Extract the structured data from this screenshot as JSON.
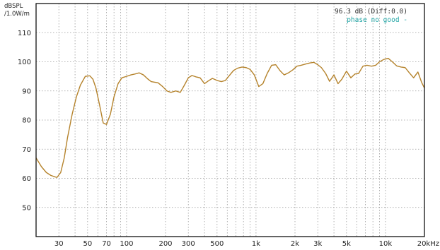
{
  "chart_data": {
    "type": "line",
    "ylabel": "dBSPL",
    "ylabel_sub": "/1.0W/m",
    "xunit_label": "Hz",
    "x_scale": "log",
    "xlim": [
      20,
      20000
    ],
    "ylim": [
      40,
      120
    ],
    "grid": true,
    "x_ticks": [
      {
        "value": 30,
        "label": "30"
      },
      {
        "value": 50,
        "label": "50"
      },
      {
        "value": 70,
        "label": "70"
      },
      {
        "value": 100,
        "label": "100"
      },
      {
        "value": 200,
        "label": "200"
      },
      {
        "value": 300,
        "label": "300"
      },
      {
        "value": 500,
        "label": "500"
      },
      {
        "value": 1000,
        "label": "1k"
      },
      {
        "value": 2000,
        "label": "2k"
      },
      {
        "value": 3000,
        "label": "3k"
      },
      {
        "value": 5000,
        "label": "5k"
      },
      {
        "value": 10000,
        "label": "10k"
      },
      {
        "value": 20000,
        "label": "20kHz"
      }
    ],
    "y_ticks": [
      {
        "value": 110,
        "label": "110"
      },
      {
        "value": 100,
        "label": "100"
      },
      {
        "value": 90,
        "label": "90"
      },
      {
        "value": 80,
        "label": "80"
      },
      {
        "value": 70,
        "label": "70"
      },
      {
        "value": 60,
        "label": "60"
      },
      {
        "value": 50,
        "label": "50"
      }
    ],
    "annotations": {
      "level": "96.3 dB (Diff:0.0)",
      "phase": "phase no good -"
    },
    "colors": {
      "curve": "#b5832c",
      "phase_text": "#21a5a5",
      "frame": "#111111"
    },
    "series": [
      {
        "x": [
          20,
          22,
          24,
          26,
          28,
          29,
          31,
          33,
          35,
          38,
          41,
          44,
          48,
          52,
          55,
          58,
          62,
          66,
          70,
          75,
          80,
          86,
          92,
          100,
          108,
          116,
          125,
          135,
          145,
          155,
          165,
          175,
          190,
          205,
          220,
          240,
          260,
          280,
          300,
          320,
          345,
          370,
          400,
          430,
          460,
          500,
          540,
          580,
          620,
          670,
          720,
          780,
          840,
          900,
          970,
          1050,
          1130,
          1220,
          1320,
          1420,
          1530,
          1650,
          1780,
          1920,
          2070,
          2230,
          2400,
          2600,
          2800,
          3000,
          3200,
          3450,
          3700,
          4000,
          4300,
          4600,
          5000,
          5400,
          5800,
          6200,
          6700,
          7200,
          7800,
          8400,
          9000,
          9700,
          10500,
          11300,
          12200,
          13200,
          14200,
          15300,
          16500,
          17800,
          19000,
          20000
        ],
        "y": [
          67,
          64,
          62,
          61,
          60.5,
          60.3,
          62,
          67,
          74,
          82,
          88,
          92,
          95,
          95.2,
          94,
          91,
          85,
          79,
          78.5,
          82,
          88,
          92.5,
          94.5,
          95,
          95.5,
          95.8,
          96.2,
          95.5,
          94.2,
          93.2,
          93.0,
          92.8,
          91.5,
          90,
          89.5,
          90,
          89.5,
          92,
          94.5,
          95.3,
          94.8,
          94.5,
          92.5,
          93.5,
          94.3,
          93.6,
          93.2,
          93.6,
          95.2,
          97,
          97.8,
          98.2,
          98,
          97.4,
          95.5,
          91.5,
          92.5,
          96,
          98.8,
          99,
          97,
          95.5,
          96.2,
          97.2,
          98.5,
          98.8,
          99.2,
          99.6,
          99.8,
          99,
          98,
          96,
          93.3,
          95.5,
          92.5,
          94,
          96.8,
          94.5,
          95.8,
          96,
          98.5,
          98.8,
          98.5,
          98.8,
          100,
          100.8,
          101.2,
          100,
          98.6,
          98.2,
          98,
          96.2,
          94.5,
          96.5,
          93,
          91
        ]
      }
    ]
  }
}
